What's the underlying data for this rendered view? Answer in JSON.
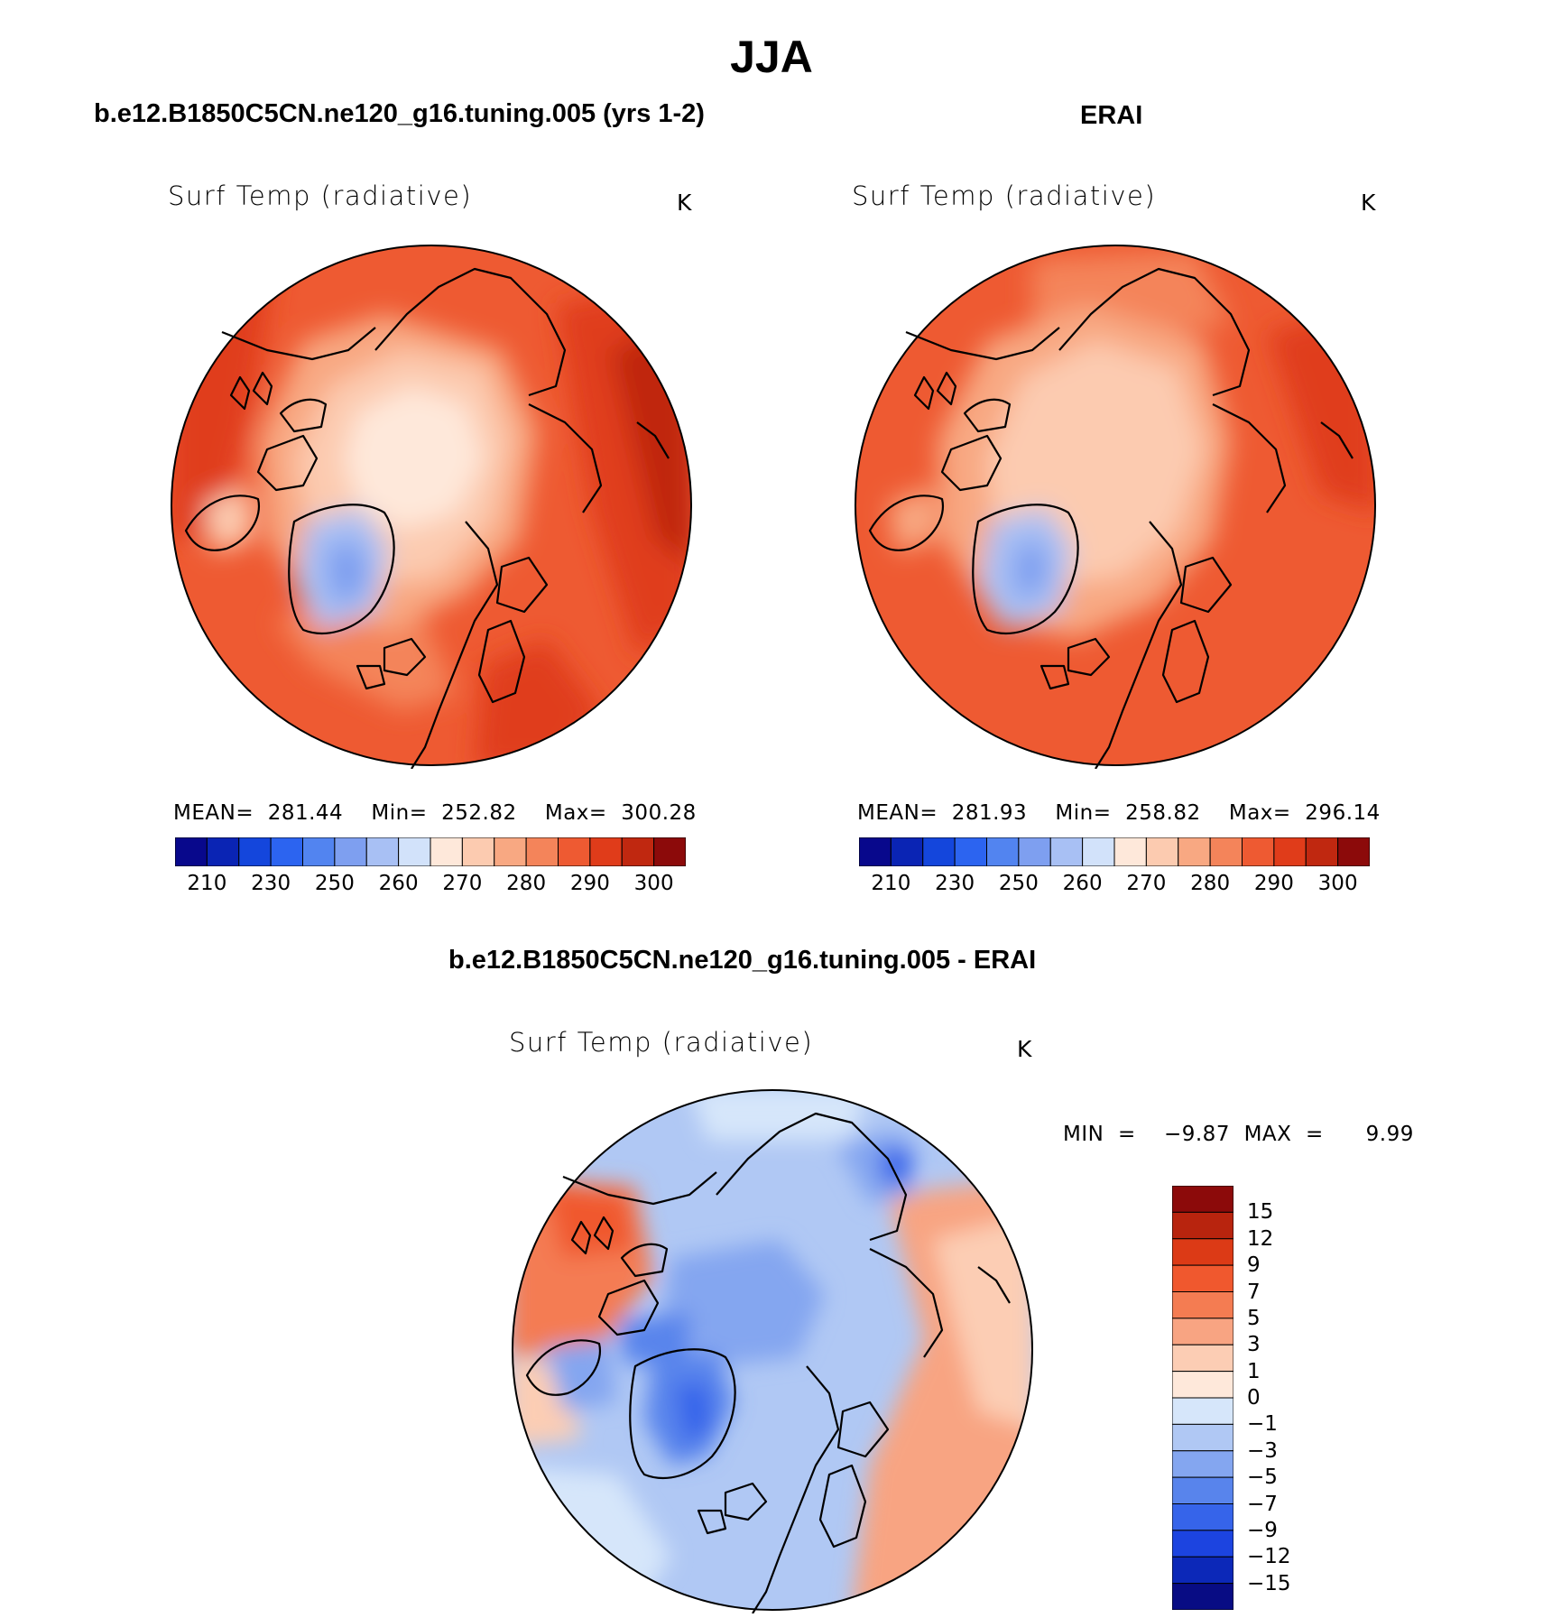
{
  "figure": {
    "title": "JJA",
    "panels": [
      {
        "case_title": "b.e12.B1850C5CN.ne120_g16.tuning.005 (yrs 1-2)",
        "var_title": "Surf Temp (radiative)",
        "units": "K",
        "stats": "MEAN=  281.44    Min=  252.82    Max=  300.28",
        "colorbar": {
          "ticks": [
            "210",
            "230",
            "250",
            "260",
            "270",
            "280",
            "290",
            "300"
          ],
          "colors": [
            "#08088c",
            "#0a24b4",
            "#1446dc",
            "#2c64f0",
            "#5284f0",
            "#7e9ff0",
            "#a8c0f4",
            "#d2e2fa",
            "#fee8da",
            "#fccbb0",
            "#f8a882",
            "#f4845a",
            "#ee5a32",
            "#e03c1a",
            "#c02810",
            "#8c0a0a"
          ]
        }
      },
      {
        "case_title": "ERAI",
        "var_title": "Surf Temp (radiative)",
        "units": "K",
        "stats": "MEAN=  281.93    Min=  258.82    Max=  296.14",
        "colorbar": {
          "ticks": [
            "210",
            "230",
            "250",
            "260",
            "270",
            "280",
            "290",
            "300"
          ],
          "colors": [
            "#08088c",
            "#0a24b4",
            "#1446dc",
            "#2c64f0",
            "#5284f0",
            "#7e9ff0",
            "#a8c0f4",
            "#d2e2fa",
            "#fee8da",
            "#fccbb0",
            "#f8a882",
            "#f4845a",
            "#ee5a32",
            "#e03c1a",
            "#c02810",
            "#8c0a0a"
          ]
        }
      },
      {
        "case_title": "b.e12.B1850C5CN.ne120_g16.tuning.005 - ERAI",
        "var_title": "Surf Temp (radiative)",
        "units": "K",
        "stats": "MIN  =    −9.87  MAX  =      9.99",
        "colorbar": {
          "ticks": [
            "15",
            "12",
            "9",
            "7",
            "5",
            "3",
            "1",
            "0",
            "−1",
            "−3",
            "−5",
            "−7",
            "−9",
            "−12",
            "−15"
          ],
          "colors": [
            "#8c0a0a",
            "#b8240e",
            "#dc3a16",
            "#f0582e",
            "#f47c52",
            "#f8a482",
            "#fccdb4",
            "#fee8da",
            "#d6e6fa",
            "#b0c8f4",
            "#84a6f0",
            "#5884ec",
            "#3664ea",
            "#1c44e0",
            "#0c28b8",
            "#080c84"
          ]
        }
      }
    ]
  }
}
